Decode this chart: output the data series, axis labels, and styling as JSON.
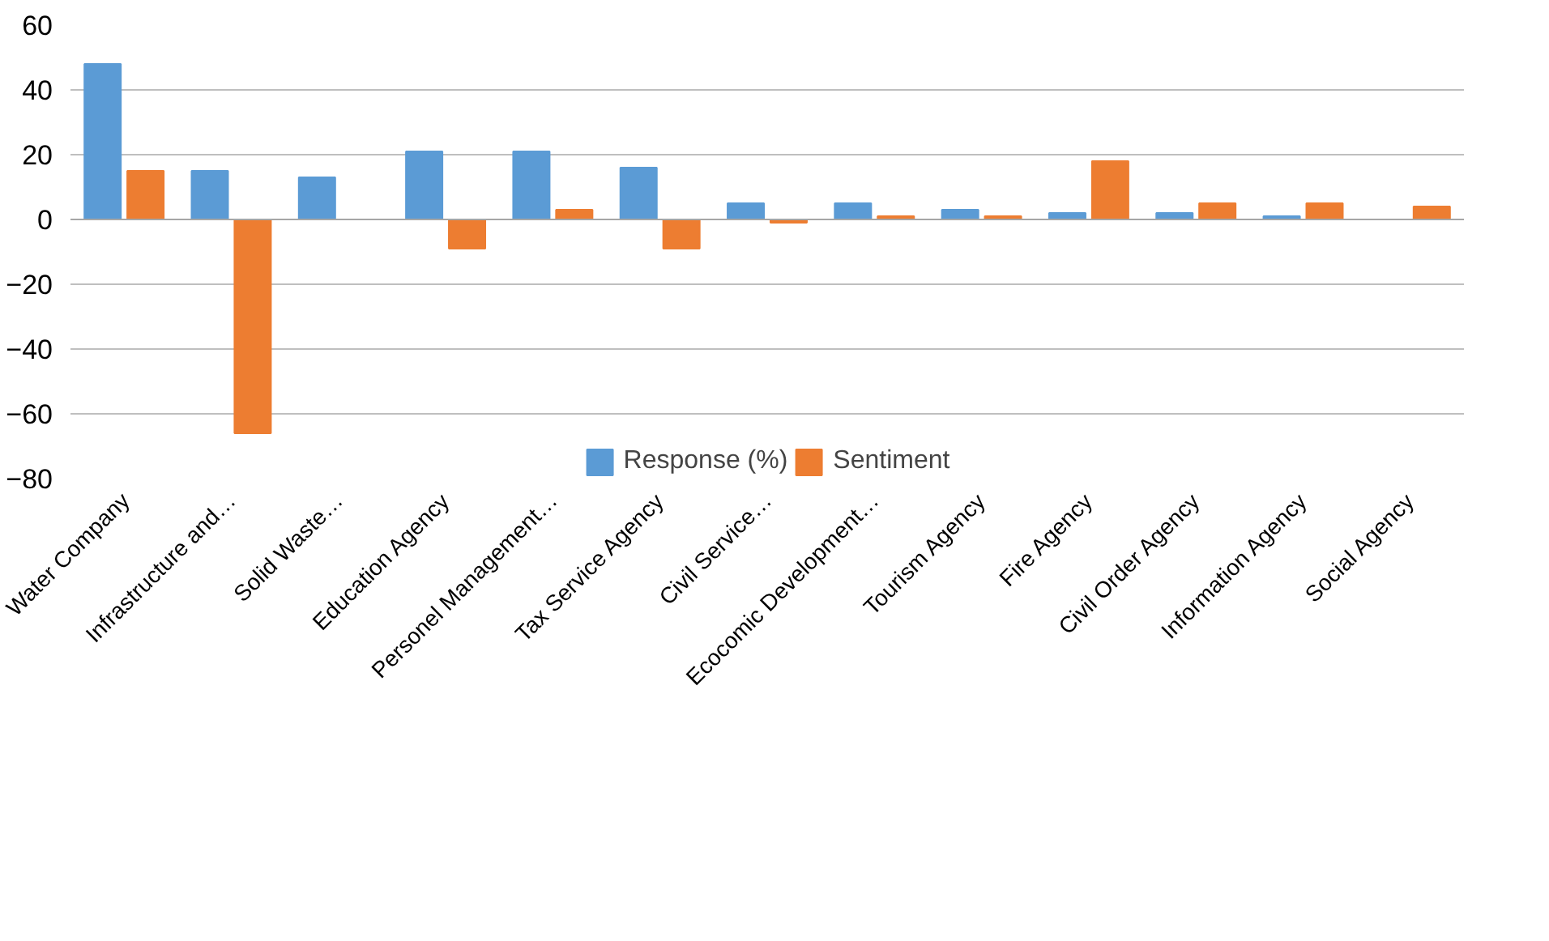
{
  "chart_data": {
    "type": "bar",
    "categories": [
      "Water Company",
      "Infrastructure and…",
      "Solid Waste…",
      "Education Agency",
      "Personel Management…",
      "Tax Service Agency",
      "Civil Service…",
      "Ecocomic Development…",
      "Tourism Agency",
      "Fire Agency",
      "Civil Order Agency",
      "Information Agency",
      "Social Agency"
    ],
    "series": [
      {
        "name": "Response (%)",
        "color": "#5b9bd5",
        "values": [
          48,
          15,
          13,
          21,
          21,
          16,
          5,
          5,
          3,
          2,
          2,
          1,
          0
        ]
      },
      {
        "name": "Sentiment",
        "color": "#ed7d31",
        "values": [
          15,
          -66,
          0,
          -9,
          3,
          -9,
          -1,
          1,
          1,
          18,
          5,
          5,
          4
        ]
      }
    ],
    "ylim": [
      -80,
      60
    ],
    "yticks": [
      -80,
      -60,
      -40,
      -20,
      0,
      20,
      40,
      60
    ],
    "grid": "y",
    "legend": "bottom"
  }
}
